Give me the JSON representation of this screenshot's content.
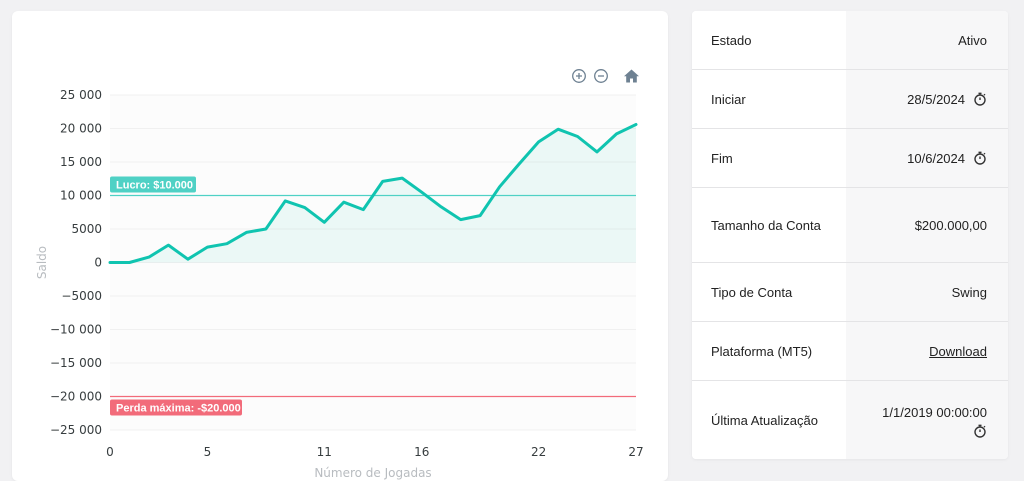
{
  "chart_data": {
    "type": "area",
    "x": [
      0,
      1,
      2,
      3,
      4,
      5,
      6,
      7,
      8,
      9,
      10,
      11,
      12,
      13,
      14,
      15,
      16,
      17,
      18,
      19,
      20,
      21,
      22,
      23,
      24,
      25,
      26,
      27
    ],
    "series": [
      {
        "values": [
          0,
          0,
          800,
          2600,
          500,
          2300,
          2800,
          4500,
          5000,
          9200,
          8200,
          6000,
          9000,
          7900,
          12100,
          12600,
          10500,
          8300,
          6400,
          7000,
          11300,
          14700,
          18000,
          19900,
          18800,
          16500,
          19200,
          20600
        ]
      }
    ],
    "ylabel": "Saldo",
    "xlabel": "Número de Jogadas",
    "ylim": [
      -25000,
      25000
    ],
    "yticks": [
      25000,
      20000,
      15000,
      10000,
      5000,
      0,
      -5000,
      -10000,
      -15000,
      -20000,
      -25000
    ],
    "ytick_labels": [
      "25 000",
      "20 000",
      "15 000",
      "10 000",
      "5000",
      "0",
      "−5000",
      "−10 000",
      "−15 000",
      "−20 000",
      "−25 000"
    ],
    "xticks": [
      0,
      5,
      11,
      16,
      22,
      27
    ],
    "xtick_labels": [
      "0",
      "5",
      "11",
      "16",
      "22",
      "27"
    ],
    "xlim": [
      0,
      27
    ],
    "annotations": [
      {
        "label": "Lucro: $10.000",
        "y": 10000,
        "color": "#4fd1c5"
      },
      {
        "label": "Perda máxima: -$20.000",
        "y": -20000,
        "color": "#f26b7a"
      }
    ],
    "line_color": "#10c4b0",
    "grid": true
  },
  "toolbar": {
    "zoom_in_icon": "zoom-in-icon",
    "zoom_out_icon": "zoom-out-icon",
    "home_icon": "home-icon"
  },
  "info": {
    "rows": [
      {
        "label": "Estado",
        "value": "Ativo"
      },
      {
        "label": "Iniciar",
        "value": "28/5/2024"
      },
      {
        "label": "Fim",
        "value": "10/6/2024"
      },
      {
        "label": "Tamanho da Conta",
        "value": "$200.000,00"
      },
      {
        "label": "Tipo de Conta",
        "value": "Swing"
      },
      {
        "label": "Plataforma (MT5)",
        "value": "Download"
      },
      {
        "label": "Última Atualização",
        "value": "1/1/2019 00:00:00"
      }
    ]
  }
}
